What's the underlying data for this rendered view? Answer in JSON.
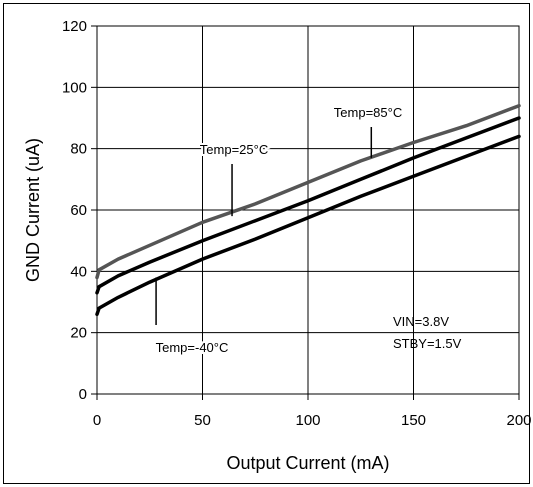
{
  "chart_data": {
    "type": "line",
    "title": "",
    "xlabel": "Output Current (mA)",
    "ylabel": "GND Current (uA)",
    "xlim": [
      0,
      200
    ],
    "ylim": [
      0,
      120
    ],
    "x_ticks": [
      "0",
      "50",
      "100",
      "150",
      "200"
    ],
    "y_ticks": [
      "0",
      "20",
      "40",
      "60",
      "80",
      "100",
      "120"
    ],
    "grid": true,
    "series": [
      {
        "name": "Temp=85°C",
        "color": "#555555",
        "points": [
          [
            0,
            38
          ],
          [
            1,
            40.5
          ],
          [
            10,
            44
          ],
          [
            25,
            48.5
          ],
          [
            50,
            56
          ],
          [
            75,
            62
          ],
          [
            100,
            69
          ],
          [
            125,
            76
          ],
          [
            150,
            82
          ],
          [
            175,
            87.5
          ],
          [
            200,
            94
          ]
        ]
      },
      {
        "name": "Temp=25°C",
        "color": "#000000",
        "points": [
          [
            0,
            33
          ],
          [
            1,
            35
          ],
          [
            10,
            38.5
          ],
          [
            25,
            43
          ],
          [
            50,
            50
          ],
          [
            75,
            56.5
          ],
          [
            100,
            63
          ],
          [
            125,
            70
          ],
          [
            150,
            77
          ],
          [
            175,
            83.5
          ],
          [
            200,
            90
          ]
        ]
      },
      {
        "name": "Temp=-40°C",
        "color": "#000000",
        "points": [
          [
            0,
            26
          ],
          [
            1,
            28
          ],
          [
            10,
            31.5
          ],
          [
            25,
            36.5
          ],
          [
            50,
            44
          ],
          [
            75,
            50.5
          ],
          [
            100,
            57.5
          ],
          [
            125,
            64.5
          ],
          [
            150,
            71
          ],
          [
            175,
            77.5
          ],
          [
            200,
            84
          ]
        ]
      }
    ],
    "annotations": [
      {
        "text": "Temp=85°C",
        "series": 0,
        "at": [
          130,
          77
        ]
      },
      {
        "text": "Temp=25°C",
        "series": 1,
        "at": [
          64,
          58
        ]
      },
      {
        "text": "Temp=-40°C",
        "series": 2,
        "at": [
          28,
          38
        ]
      },
      {
        "text": "VIN=3.8V"
      },
      {
        "text": "STBY=1.5V"
      }
    ]
  }
}
